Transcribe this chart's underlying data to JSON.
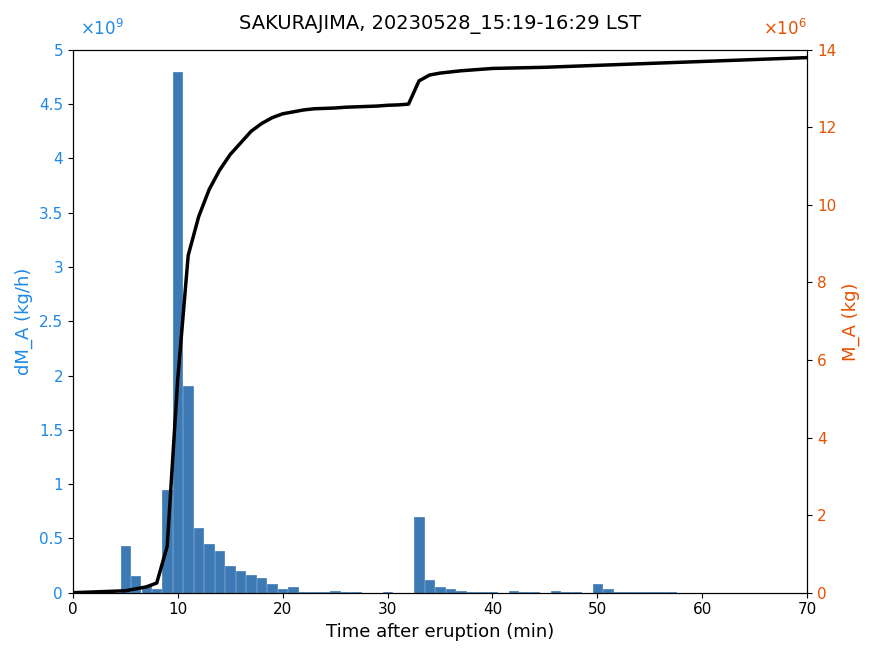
{
  "title": "SAKURAJIMA, 20230528_15:19-16:29 LST",
  "xlabel": "Time after eruption (min)",
  "ylabel_left": "dM_A (kg/h)",
  "ylabel_right": "M_A (kg)",
  "bar_color": "#3D7AB5",
  "line_color": "#000000",
  "left_axis_color": "#1E88E5",
  "right_axis_color": "#E65100",
  "xlim": [
    0,
    70
  ],
  "ylim_left": [
    0,
    5000000000.0
  ],
  "ylim_right": [
    0,
    14000000.0
  ],
  "bar_centers": [
    5,
    6,
    7,
    8,
    9,
    10,
    11,
    12,
    13,
    14,
    15,
    16,
    17,
    18,
    19,
    20,
    21,
    22,
    23,
    24,
    25,
    26,
    27,
    28,
    29,
    30,
    31,
    32,
    33,
    34,
    35,
    36,
    37,
    38,
    39,
    40,
    41,
    42,
    43,
    44,
    45,
    46,
    47,
    48,
    49,
    50,
    51,
    52,
    53,
    54,
    55,
    56,
    57,
    58,
    59,
    60,
    61,
    62,
    63,
    64,
    65,
    66,
    67,
    68
  ],
  "bar_heights": [
    430000000.0,
    150000000.0,
    60000000.0,
    30000000.0,
    950000000.0,
    4800000000.0,
    1900000000.0,
    600000000.0,
    450000000.0,
    380000000.0,
    250000000.0,
    200000000.0,
    160000000.0,
    140000000.0,
    80000000.0,
    30000000.0,
    50000000.0,
    10000000.0,
    5000000.0,
    5000000.0,
    15000000.0,
    10000000.0,
    3000000.0,
    2000000.0,
    1000000.0,
    5000000.0,
    2000000.0,
    1000000.0,
    700000000.0,
    120000000.0,
    50000000.0,
    30000000.0,
    15000000.0,
    10000000.0,
    5000000.0,
    3000000.0,
    2000000.0,
    15000000.0,
    5000000.0,
    3000000.0,
    2000000.0,
    15000000.0,
    5000000.0,
    3000000.0,
    2000000.0,
    80000000.0,
    30000000.0,
    10000000.0,
    5000000.0,
    3000000.0,
    10000000.0,
    5000000.0,
    3000000.0,
    1500000.0,
    1000000.0,
    500000.0,
    300000.0,
    200000.0,
    100000.0,
    50000.0,
    30000.0,
    20000.0,
    10000.0,
    5000.0
  ],
  "cum_x": [
    0,
    5,
    6,
    7,
    8,
    9,
    10,
    11,
    12,
    13,
    14,
    15,
    16,
    17,
    18,
    19,
    20,
    21,
    22,
    23,
    24,
    25,
    26,
    27,
    28,
    29,
    30,
    31,
    32,
    33,
    34,
    35,
    36,
    37,
    38,
    39,
    40,
    45,
    50,
    55,
    60,
    65,
    70
  ],
  "cum_y": [
    0,
    50000.0,
    100000.0,
    150000.0,
    250000.0,
    1200000.0,
    5500000.0,
    8700000.0,
    9700000.0,
    10400000.0,
    10900000.0,
    11300000.0,
    11600000.0,
    11900000.0,
    12100000.0,
    12250000.0,
    12350000.0,
    12400000.0,
    12450000.0,
    12480000.0,
    12490000.0,
    12500000.0,
    12520000.0,
    12530000.0,
    12540000.0,
    12550000.0,
    12570000.0,
    12580000.0,
    12600000.0,
    13200000.0,
    13350000.0,
    13400000.0,
    13430000.0,
    13460000.0,
    13480000.0,
    13500000.0,
    13520000.0,
    13550000.0,
    13600000.0,
    13650000.0,
    13700000.0,
    13750000.0,
    13800000.0
  ],
  "xticks": [
    0,
    10,
    20,
    30,
    40,
    50,
    60,
    70
  ],
  "yticks_left": [
    0,
    500000000.0,
    1000000000.0,
    1500000000.0,
    2000000000.0,
    2500000000.0,
    3000000000.0,
    3500000000.0,
    4000000000.0,
    4500000000.0,
    5000000000.0
  ],
  "yticks_right": [
    0,
    2000000.0,
    4000000.0,
    6000000.0,
    8000000.0,
    10000000.0,
    12000000.0,
    14000000.0
  ]
}
